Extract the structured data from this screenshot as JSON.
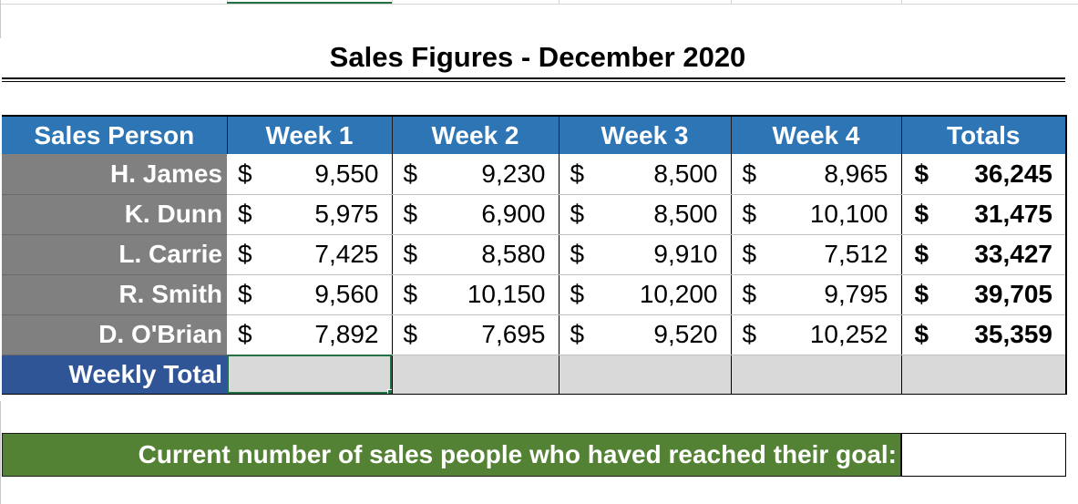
{
  "title": "Sales Figures - December 2020",
  "headers": [
    "Sales Person",
    "Week 1",
    "Week 2",
    "Week 3",
    "Week 4",
    "Totals"
  ],
  "currency_symbol": "$",
  "rows": [
    {
      "name": "H. James",
      "weeks": [
        "9,550",
        "9,230",
        "8,500",
        "8,965"
      ],
      "total": "36,245"
    },
    {
      "name": "K. Dunn",
      "weeks": [
        "5,975",
        "6,900",
        "8,500",
        "10,100"
      ],
      "total": "31,475"
    },
    {
      "name": "L. Carrie",
      "weeks": [
        "7,425",
        "8,580",
        "9,910",
        "7,512"
      ],
      "total": "33,427"
    },
    {
      "name": "R. Smith",
      "weeks": [
        "9,560",
        "10,150",
        "10,200",
        "9,795"
      ],
      "total": "39,705"
    },
    {
      "name": "D. O'Brian",
      "weeks": [
        "7,892",
        "7,695",
        "9,520",
        "10,252"
      ],
      "total": "35,359"
    }
  ],
  "weekly_total_label": "Weekly Total",
  "goal_label": "Current number of sales people who haved reached their goal:",
  "colors": {
    "header_blue": "#2e75b6",
    "person_gray": "#808080",
    "weekly_blue": "#2f5597",
    "goal_green": "#548235",
    "selection_green": "#217346"
  }
}
